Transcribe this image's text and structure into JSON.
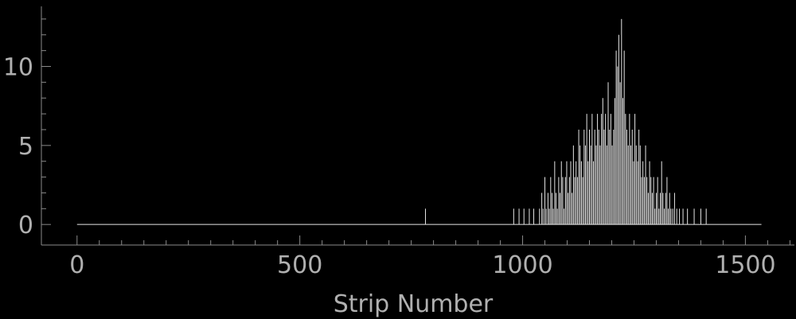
{
  "chart_data": {
    "type": "bar",
    "title": "",
    "xlabel": "Strip Number",
    "ylabel": "",
    "xlim": [
      -80,
      1610
    ],
    "ylim": [
      -1.3,
      13.8
    ],
    "x_ticks": [
      0,
      500,
      1000,
      1500
    ],
    "y_ticks": [
      0,
      5,
      10
    ],
    "x_minor_step": 50,
    "y_minor_step": 1,
    "baseline": {
      "from": 0,
      "to": 1536,
      "value": 0
    },
    "colors": {
      "background": "#000000",
      "bars": "#e6e6e6",
      "axes": "#8a8a8a",
      "text": "#b0b0b0"
    },
    "points": [
      [
        782,
        1
      ],
      [
        980,
        1
      ],
      [
        992,
        1
      ],
      [
        1003,
        1
      ],
      [
        1015,
        1
      ],
      [
        1025,
        1
      ],
      [
        1038,
        1
      ],
      [
        1043,
        2
      ],
      [
        1046,
        1
      ],
      [
        1050,
        3
      ],
      [
        1053,
        1
      ],
      [
        1057,
        2
      ],
      [
        1060,
        1
      ],
      [
        1063,
        3
      ],
      [
        1066,
        2
      ],
      [
        1069,
        1
      ],
      [
        1072,
        4
      ],
      [
        1075,
        2
      ],
      [
        1078,
        1
      ],
      [
        1081,
        3
      ],
      [
        1084,
        2
      ],
      [
        1087,
        4
      ],
      [
        1090,
        3
      ],
      [
        1093,
        1
      ],
      [
        1096,
        3
      ],
      [
        1099,
        4
      ],
      [
        1102,
        2
      ],
      [
        1105,
        3
      ],
      [
        1108,
        4
      ],
      [
        1111,
        2
      ],
      [
        1114,
        5
      ],
      [
        1117,
        3
      ],
      [
        1120,
        4
      ],
      [
        1123,
        3
      ],
      [
        1126,
        6
      ],
      [
        1129,
        5
      ],
      [
        1132,
        4
      ],
      [
        1135,
        3
      ],
      [
        1138,
        6
      ],
      [
        1141,
        5
      ],
      [
        1144,
        7
      ],
      [
        1147,
        4
      ],
      [
        1150,
        6
      ],
      [
        1153,
        5
      ],
      [
        1156,
        7
      ],
      [
        1159,
        4
      ],
      [
        1162,
        6
      ],
      [
        1165,
        5
      ],
      [
        1168,
        7
      ],
      [
        1171,
        6
      ],
      [
        1174,
        5
      ],
      [
        1177,
        7
      ],
      [
        1180,
        8
      ],
      [
        1183,
        6
      ],
      [
        1186,
        7
      ],
      [
        1189,
        5
      ],
      [
        1192,
        9
      ],
      [
        1195,
        6
      ],
      [
        1198,
        7
      ],
      [
        1201,
        5
      ],
      [
        1204,
        6
      ],
      [
        1207,
        8
      ],
      [
        1210,
        11
      ],
      [
        1213,
        10
      ],
      [
        1216,
        12
      ],
      [
        1219,
        9
      ],
      [
        1222,
        13
      ],
      [
        1225,
        8
      ],
      [
        1228,
        11
      ],
      [
        1231,
        7
      ],
      [
        1234,
        6
      ],
      [
        1237,
        5
      ],
      [
        1240,
        7
      ],
      [
        1243,
        5
      ],
      [
        1246,
        6
      ],
      [
        1249,
        4
      ],
      [
        1252,
        7
      ],
      [
        1255,
        5
      ],
      [
        1258,
        4
      ],
      [
        1261,
        6
      ],
      [
        1264,
        5
      ],
      [
        1267,
        3
      ],
      [
        1270,
        4
      ],
      [
        1273,
        3
      ],
      [
        1276,
        5
      ],
      [
        1279,
        3
      ],
      [
        1282,
        2
      ],
      [
        1285,
        4
      ],
      [
        1288,
        3
      ],
      [
        1291,
        2
      ],
      [
        1294,
        3
      ],
      [
        1297,
        1
      ],
      [
        1300,
        2
      ],
      [
        1303,
        3
      ],
      [
        1306,
        1
      ],
      [
        1309,
        2
      ],
      [
        1312,
        4
      ],
      [
        1315,
        2
      ],
      [
        1318,
        1
      ],
      [
        1321,
        2
      ],
      [
        1324,
        3
      ],
      [
        1327,
        1
      ],
      [
        1330,
        2
      ],
      [
        1333,
        1
      ],
      [
        1337,
        1
      ],
      [
        1341,
        2
      ],
      [
        1346,
        1
      ],
      [
        1352,
        1
      ],
      [
        1360,
        1
      ],
      [
        1370,
        1
      ],
      [
        1385,
        1
      ],
      [
        1400,
        1
      ],
      [
        1412,
        1
      ]
    ]
  }
}
